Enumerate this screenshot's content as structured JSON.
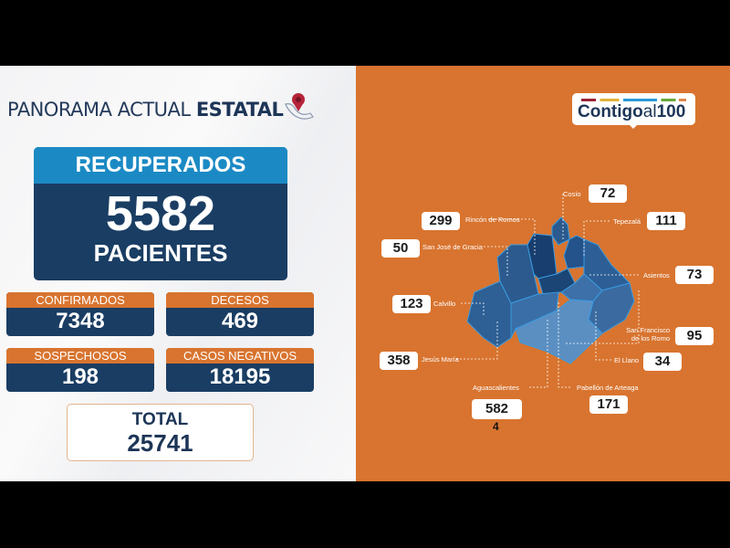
{
  "header": {
    "title_light": "PANORAMA ACTUAL",
    "title_bold": "ESTATAL",
    "icon": "mexico-map-pin-icon"
  },
  "recuperados": {
    "label": "RECUPERADOS",
    "value": "5582",
    "unit": "PACIENTES"
  },
  "stats": [
    {
      "label": "CONFIRMADOS",
      "value": "7348"
    },
    {
      "label": "DECESOS",
      "value": "469"
    },
    {
      "label": "SOSPECHOSOS",
      "value": "198"
    },
    {
      "label": "CASOS NEGATIVOS",
      "value": "18195"
    }
  ],
  "total": {
    "label": "TOTAL",
    "value": "25741"
  },
  "logo": {
    "text_a": "Contigo",
    "text_b": "al",
    "text_c": "100"
  },
  "municipalities": [
    {
      "name": "Cosío",
      "value": "72"
    },
    {
      "name": "Rincón de Romos",
      "value": "299"
    },
    {
      "name": "Tepezalá",
      "value": "111"
    },
    {
      "name": "San José de Gracia",
      "value": "50"
    },
    {
      "name": "Asientos",
      "value": "73"
    },
    {
      "name": "Calvillo",
      "value": "123"
    },
    {
      "name": "San Francisco de los Romo",
      "value": "95"
    },
    {
      "name": "Jesús María",
      "value": "358"
    },
    {
      "name": "El Llano",
      "value": "34"
    },
    {
      "name": "Aguascalientes",
      "value": "582",
      "extra": "4"
    },
    {
      "name": "Pabellón de Arteaga",
      "value": "171"
    }
  ],
  "colors": {
    "orange": "#d8742f",
    "navy": "#1a3d63",
    "blue": "#1b8ac4"
  }
}
